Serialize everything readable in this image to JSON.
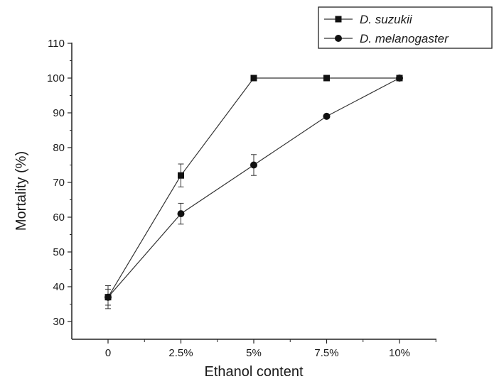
{
  "chart_data": {
    "type": "line",
    "title": "",
    "xlabel": "Ethanol content",
    "ylabel": "Mortality (%)",
    "categories": [
      "0",
      "2.5%",
      "5%",
      "7.5%",
      "10%"
    ],
    "yticks": [
      "30",
      "40",
      "50",
      "60",
      "70",
      "80",
      "90",
      "100",
      "110"
    ],
    "ylim": [
      25,
      110
    ],
    "grid": false,
    "legend_position": "top-right",
    "series": [
      {
        "name": "D. suzukii",
        "marker": "square",
        "values": [
          37,
          72,
          100,
          100,
          100
        ],
        "errors": [
          3.3,
          3.3,
          0,
          0,
          0
        ]
      },
      {
        "name": "D. melanogaster",
        "marker": "circle",
        "values": [
          37,
          61,
          75,
          89,
          100
        ],
        "errors": [
          2.3,
          3.0,
          3.0,
          0,
          0
        ]
      }
    ],
    "colors": {
      "line": "#333333",
      "marker": "#111111",
      "axis": "#222222"
    }
  }
}
